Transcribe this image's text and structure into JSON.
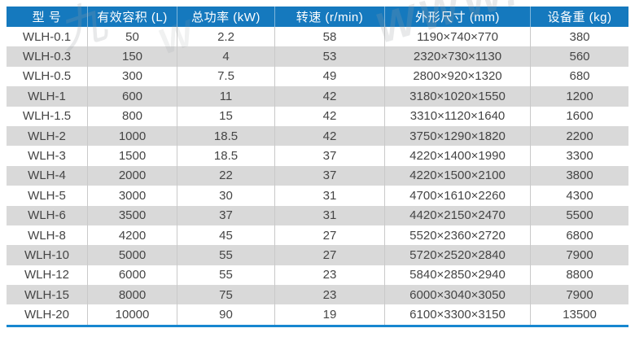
{
  "colors": {
    "header_bg": "#1579be",
    "header_text": "#ffffff",
    "stripe": "#d9d9d9",
    "row_bg": "#ffffff",
    "body_text": "#454545",
    "divider": "#c9c9c9",
    "bottom_line": "#1787d0",
    "page_bg": "#ffffff"
  },
  "watermark": {
    "marks": [
      "九",
      "WWW.",
      "W"
    ]
  },
  "table": {
    "columns": [
      {
        "key": "model",
        "label": "型 号"
      },
      {
        "key": "volume",
        "label": "有效容积 (L)"
      },
      {
        "key": "power",
        "label": "总功率 (kW)"
      },
      {
        "key": "speed",
        "label": "转速 (r/min)"
      },
      {
        "key": "dimensions",
        "label": "外形尺寸 (mm)"
      },
      {
        "key": "weight",
        "label": "设备重 (kg)"
      }
    ],
    "rows": [
      {
        "model": "WLH-0.1",
        "volume": "50",
        "power": "2.2",
        "speed": "58",
        "dimensions": "1190×740×770",
        "weight": "380"
      },
      {
        "model": "WLH-0.3",
        "volume": "150",
        "power": "4",
        "speed": "53",
        "dimensions": "2320×730×1130",
        "weight": "560"
      },
      {
        "model": "WLH-0.5",
        "volume": "300",
        "power": "7.5",
        "speed": "49",
        "dimensions": "2800×920×1320",
        "weight": "680"
      },
      {
        "model": "WLH-1",
        "volume": "600",
        "power": "11",
        "speed": "42",
        "dimensions": "3180×1020×1550",
        "weight": "1200"
      },
      {
        "model": "WLH-1.5",
        "volume": "800",
        "power": "15",
        "speed": "42",
        "dimensions": "3310×1120×1640",
        "weight": "1600"
      },
      {
        "model": "WLH-2",
        "volume": "1000",
        "power": "18.5",
        "speed": "42",
        "dimensions": "3750×1290×1820",
        "weight": "2200"
      },
      {
        "model": "WLH-3",
        "volume": "1500",
        "power": "18.5",
        "speed": "37",
        "dimensions": "4220×1400×1990",
        "weight": "3300"
      },
      {
        "model": "WLH-4",
        "volume": "2000",
        "power": "22",
        "speed": "37",
        "dimensions": "4220×1500×2100",
        "weight": "3800"
      },
      {
        "model": "WLH-5",
        "volume": "3000",
        "power": "30",
        "speed": "31",
        "dimensions": "4700×1610×2260",
        "weight": "4300"
      },
      {
        "model": "WLH-6",
        "volume": "3500",
        "power": "37",
        "speed": "31",
        "dimensions": "4420×2150×2470",
        "weight": "5500"
      },
      {
        "model": "WLH-8",
        "volume": "4200",
        "power": "45",
        "speed": "27",
        "dimensions": "5520×2360×2720",
        "weight": "6800"
      },
      {
        "model": "WLH-10",
        "volume": "5000",
        "power": "55",
        "speed": "27",
        "dimensions": "5720×2520×2840",
        "weight": "7900"
      },
      {
        "model": "WLH-12",
        "volume": "6000",
        "power": "55",
        "speed": "23",
        "dimensions": "5840×2850×2940",
        "weight": "8800"
      },
      {
        "model": "WLH-15",
        "volume": "8000",
        "power": "75",
        "speed": "23",
        "dimensions": "6000×3040×3050",
        "weight": "7900"
      },
      {
        "model": "WLH-20",
        "volume": "10000",
        "power": "90",
        "speed": "19",
        "dimensions": "6100×3300×3150",
        "weight": "13500"
      }
    ]
  }
}
